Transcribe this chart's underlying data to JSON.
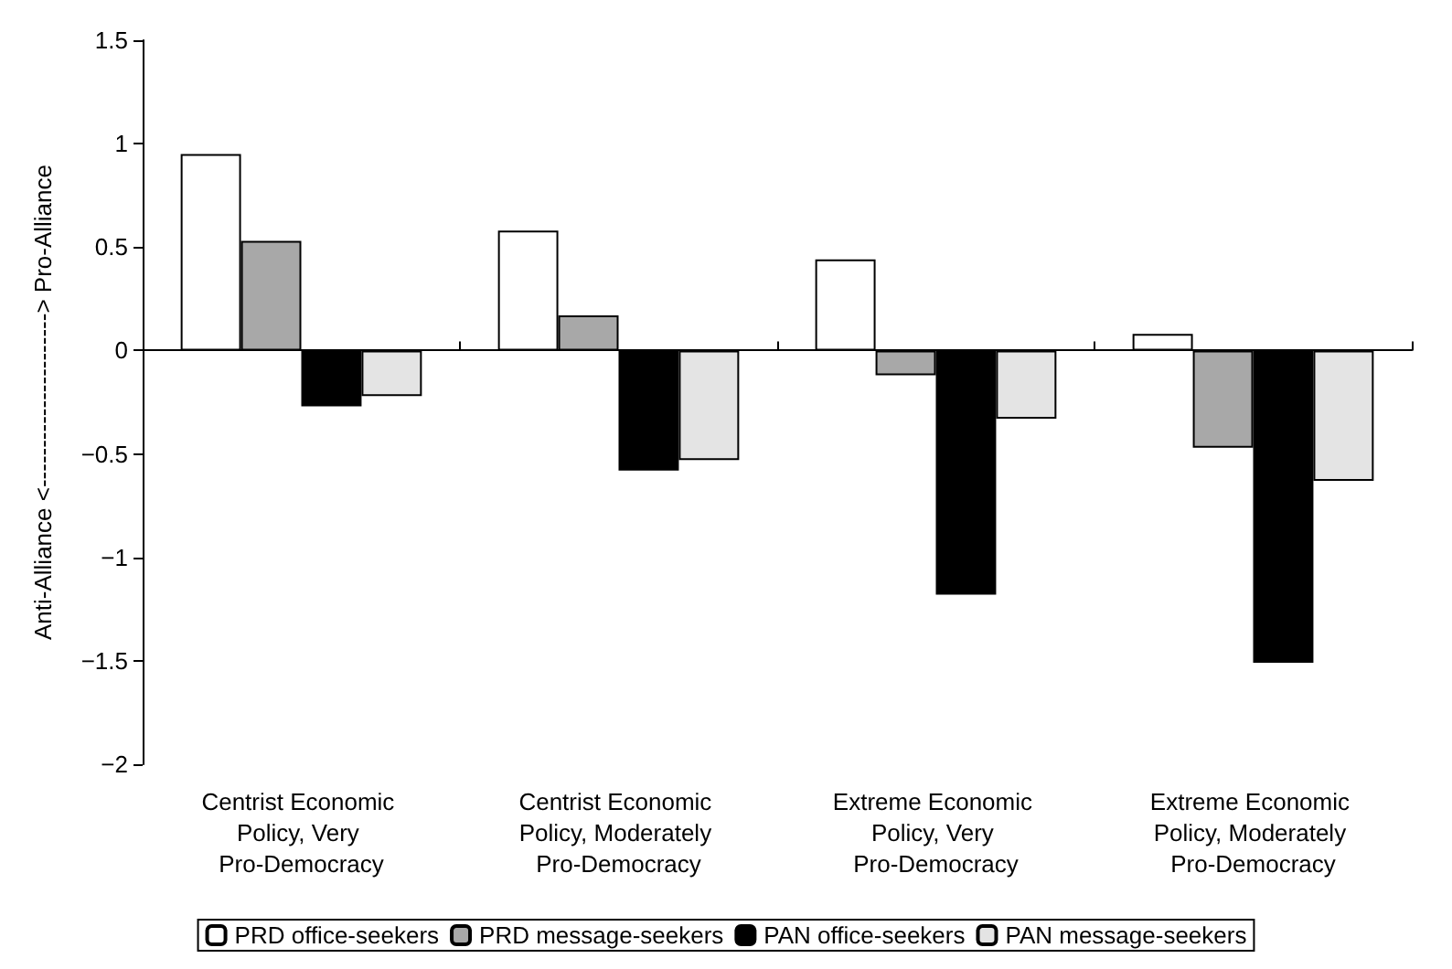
{
  "chart_data": {
    "type": "bar",
    "ylabel": "Anti-Alliance <----------------------> Pro-Alliance",
    "categories": [
      "Centrist Economic Policy, Very Pro-Democracy",
      "Centrist Economic Policy, Moderately Pro-Democracy",
      "Extreme Economic Policy, Very Pro-Democracy",
      "Extreme Economic Policy, Moderately Pro-Democracy"
    ],
    "series": [
      {
        "name": "PRD office-seekers",
        "color": "#ffffff",
        "values": [
          0.95,
          0.58,
          0.44,
          0.08
        ]
      },
      {
        "name": "PRD message-seekers",
        "color": "#a8a8a8",
        "values": [
          0.53,
          0.17,
          -0.12,
          -0.47
        ]
      },
      {
        "name": "PAN office-seekers",
        "color": "#000000",
        "values": [
          -0.27,
          -0.58,
          -1.18,
          -1.51
        ]
      },
      {
        "name": "PAN message-seekers",
        "color": "#e4e4e4",
        "values": [
          -0.22,
          -0.53,
          -0.33,
          -0.63
        ]
      }
    ],
    "ylim": [
      -2,
      1.5
    ],
    "yticks": [
      {
        "value": -2,
        "label": "−2"
      },
      {
        "value": -1.5,
        "label": "−1.5"
      },
      {
        "value": -1,
        "label": "−1"
      },
      {
        "value": -0.5,
        "label": "−0.5"
      },
      0,
      0.5,
      1,
      1.5
    ],
    "legend": "bottom"
  }
}
